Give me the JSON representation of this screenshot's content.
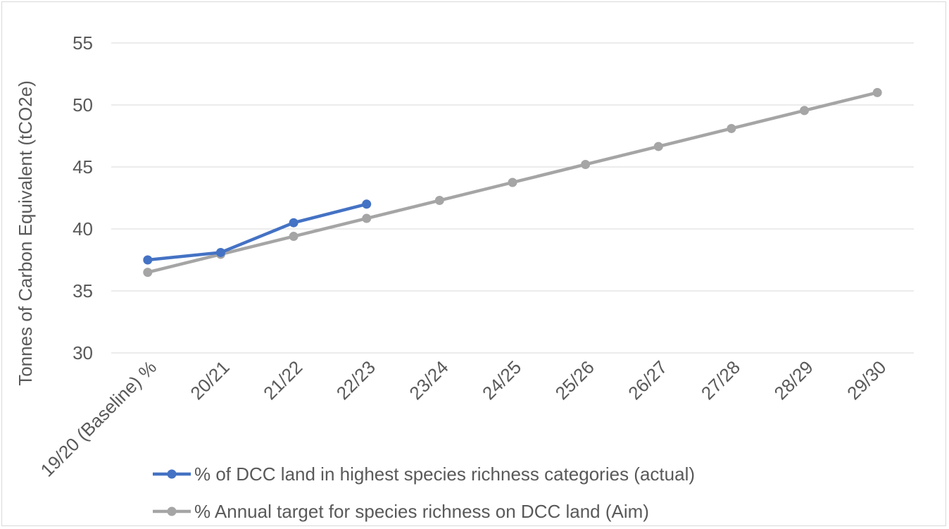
{
  "chart_data": {
    "type": "line",
    "title": "",
    "xlabel": "",
    "ylabel": "Tonnes of Carbon Equivalent (tCO2e)",
    "ylim": [
      30,
      55
    ],
    "yticks": [
      30,
      35,
      40,
      45,
      50,
      55
    ],
    "grid": true,
    "legend_position": "bottom",
    "categories": [
      "19/20 (Baseline) %",
      "20/21",
      "21/22",
      "22/23",
      "23/24",
      "24/25",
      "25/26",
      "26/27",
      "27/28",
      "28/29",
      "29/30"
    ],
    "series": [
      {
        "name": "% of DCC land in highest species richness categories (actual)",
        "color": "#4472c4",
        "values": [
          37.5,
          38.1,
          40.5,
          42.0,
          null,
          null,
          null,
          null,
          null,
          null,
          null
        ]
      },
      {
        "name": "% Annual target for species richness on DCC land (Aim)",
        "color": "#a5a5a5",
        "values": [
          36.5,
          37.95,
          39.4,
          40.85,
          42.3,
          43.75,
          45.2,
          46.65,
          48.1,
          49.55,
          51.0
        ]
      }
    ]
  }
}
